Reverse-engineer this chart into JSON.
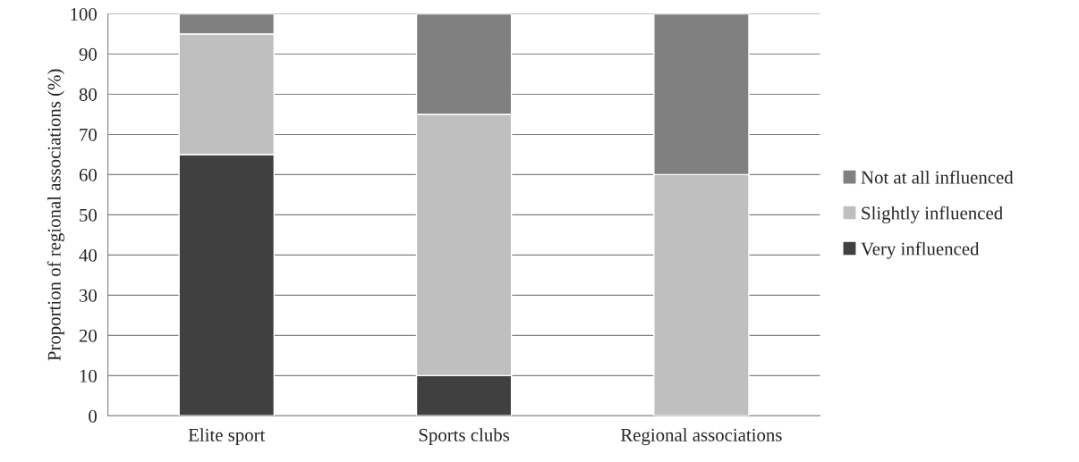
{
  "chart_data": {
    "type": "bar",
    "stacked": true,
    "ylabel": "Proportion of regional associations (%)",
    "categories": [
      "Elite sport",
      "Sports clubs",
      "Regional associations"
    ],
    "series": [
      {
        "name": "Very influenced",
        "color": "#404040",
        "values": [
          65,
          10,
          0
        ]
      },
      {
        "name": "Slightly influenced",
        "color": "#bfbfbf",
        "values": [
          30,
          65,
          60
        ]
      },
      {
        "name": "Not at all influenced",
        "color": "#808080",
        "values": [
          5,
          25,
          40
        ]
      }
    ],
    "ylim": [
      0,
      100
    ],
    "yticks": [
      0,
      10,
      20,
      30,
      40,
      50,
      60,
      70,
      80,
      90,
      100
    ],
    "grid": "y",
    "legend": "right"
  }
}
